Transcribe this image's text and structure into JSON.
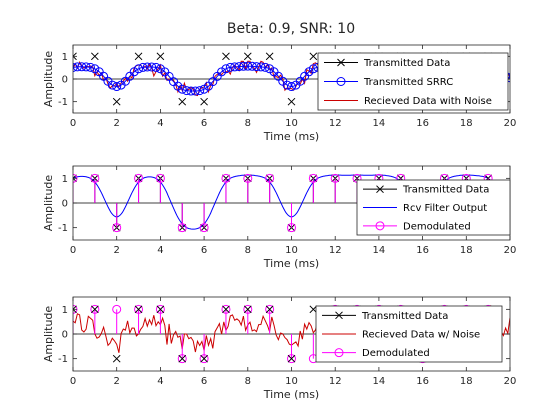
{
  "figure_title": "Beta: 0.9, SNR: 10",
  "colors": {
    "transmitted_data": "#000000",
    "srrc": "#0000ff",
    "noise": "#cc0000",
    "demod": "#ff00ff",
    "axis": "#262626",
    "background": "#ffffff"
  },
  "chart_data": [
    {
      "type": "line",
      "title": "Beta: 0.9, SNR: 10",
      "xlabel": "Time (ms)",
      "ylabel": "Amplitude",
      "xlim": [
        0,
        20
      ],
      "ylim": [
        -1.5,
        1.5
      ],
      "xticks": [
        0,
        2,
        4,
        6,
        8,
        10,
        12,
        14,
        16,
        18,
        20
      ],
      "yticks": [
        -1,
        0,
        1
      ],
      "legend_position": "top-right",
      "grid": false,
      "symbols": [
        1,
        1,
        -1,
        1,
        1,
        -1,
        -1,
        1,
        1,
        1,
        -1,
        1,
        1,
        1,
        1,
        1,
        -1,
        1,
        1,
        1
      ],
      "series": [
        {
          "name": "Transmitted Data",
          "style": "x-markers"
        },
        {
          "name": "Transmitted SRRC",
          "style": "o-line"
        },
        {
          "name": "Recieved Data with Noise",
          "style": "line"
        }
      ]
    },
    {
      "type": "line",
      "xlabel": "Time (ms)",
      "ylabel": "Amplitude",
      "xlim": [
        0,
        20
      ],
      "ylim": [
        -1.5,
        1.5
      ],
      "xticks": [
        0,
        2,
        4,
        6,
        8,
        10,
        12,
        14,
        16,
        18,
        20
      ],
      "yticks": [
        -1,
        0,
        1
      ],
      "legend_position": "top-right",
      "grid": false,
      "symbols": [
        1,
        1,
        -1,
        1,
        1,
        -1,
        -1,
        1,
        1,
        1,
        -1,
        1,
        1,
        1,
        1,
        1,
        -1,
        1,
        1,
        1
      ],
      "demodulated": [
        1,
        1,
        -1,
        1,
        1,
        -1,
        -1,
        1,
        1,
        1,
        -1,
        1,
        1,
        1,
        1,
        1,
        -1,
        1,
        1,
        1
      ],
      "series": [
        {
          "name": "Transmitted Data",
          "style": "x-stem"
        },
        {
          "name": "Rcv Filter Output",
          "style": "line"
        },
        {
          "name": "Demodulated",
          "style": "o-stem"
        }
      ]
    },
    {
      "type": "line",
      "xlabel": "Time (ms)",
      "ylabel": "Amplitude",
      "xlim": [
        0,
        20
      ],
      "ylim": [
        -1.5,
        1.5
      ],
      "xticks": [
        0,
        2,
        4,
        6,
        8,
        10,
        12,
        14,
        16,
        18,
        20
      ],
      "yticks": [
        -1,
        0,
        1
      ],
      "legend_position": "top-right",
      "grid": false,
      "symbols": [
        1,
        1,
        -1,
        1,
        1,
        -1,
        -1,
        1,
        1,
        1,
        -1,
        1,
        1,
        1,
        1,
        1,
        -1,
        1,
        1,
        1
      ],
      "demodulated": [
        1,
        1,
        1,
        1,
        1,
        -1,
        -1,
        1,
        1,
        1,
        -1,
        -1,
        1,
        1,
        1,
        1,
        -1,
        1,
        1,
        1
      ],
      "series": [
        {
          "name": "Transmitted Data",
          "style": "x-markers"
        },
        {
          "name": "Recieved Data w/ Noise",
          "style": "line"
        },
        {
          "name": "Demodulated",
          "style": "o-stem"
        }
      ]
    }
  ]
}
